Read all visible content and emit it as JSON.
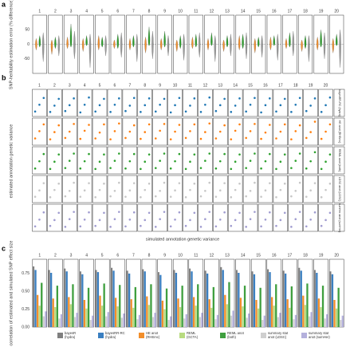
{
  "chart_data": [
    {
      "type": "violin",
      "panel_label": "a",
      "y_label": "SNP-heritability estimation error (% difference)",
      "facets": [
        "1",
        "2",
        "3",
        "4",
        "5",
        "6",
        "7",
        "8",
        "9",
        "10",
        "11",
        "12",
        "13",
        "14",
        "15",
        "16",
        "17",
        "18",
        "19",
        "20"
      ],
      "ylim": [
        -100,
        100
      ],
      "yticks": [
        -50,
        0,
        50
      ],
      "series": [
        {
          "color": "#f28e2b",
          "min": [
            -20,
            -35,
            -15,
            -25,
            -20,
            -15,
            -20,
            -30,
            -20,
            -25,
            -15,
            -20,
            -25,
            -20,
            -30,
            -20,
            -15,
            -25,
            -20,
            -30
          ],
          "max": [
            20,
            15,
            25,
            20,
            30,
            15,
            20,
            25,
            20,
            15,
            25,
            20,
            15,
            30,
            20,
            25,
            20,
            15,
            25,
            20
          ]
        },
        {
          "color": "#2ca02c",
          "min": [
            -10,
            -15,
            -10,
            -5,
            -10,
            -15,
            -10,
            -5,
            -10,
            -15,
            -10,
            -5,
            -10,
            -15,
            -10,
            -5,
            -10,
            -15,
            -10,
            -5
          ],
          "max": [
            30,
            25,
            70,
            30,
            25,
            35,
            30,
            60,
            45,
            30,
            35,
            40,
            30,
            35,
            25,
            30,
            40,
            30,
            50,
            35
          ]
        },
        {
          "color": "#9a9a9a",
          "min": [
            -60,
            -40,
            -50,
            -80,
            -40,
            -45,
            -60,
            -50,
            -40,
            -55,
            -45,
            -60,
            -40,
            -50,
            -45,
            -55,
            -40,
            -60,
            -50,
            -80
          ],
          "max": [
            40,
            30,
            45,
            35,
            30,
            40,
            35,
            45,
            30,
            35,
            40,
            30,
            35,
            40,
            30,
            35,
            45,
            30,
            40,
            50
          ]
        }
      ]
    },
    {
      "type": "scatter",
      "panel_label": "b",
      "y_label": "estimated annotation genetic variance",
      "x_label": "simulated annotation genetic variance",
      "facets": [
        "1",
        "2",
        "3",
        "4",
        "5",
        "6",
        "7",
        "8",
        "9",
        "10",
        "11",
        "12",
        "13",
        "14",
        "15",
        "16",
        "17",
        "18",
        "19",
        "20"
      ],
      "x": [
        0.001,
        0.0025,
        0.004
      ],
      "xlim": [
        0,
        0.005
      ],
      "ylim": [
        0,
        0.006
      ],
      "rows": [
        {
          "name": "bayesRR-RC (hydra)",
          "color": "#1f77b4",
          "values": [
            [
              0.0011,
              0.0026,
              0.0041
            ],
            [
              0.001,
              0.0024,
              0.0039
            ],
            [
              0.0012,
              0.0025,
              0.004
            ],
            [
              0.0009,
              0.0026,
              0.0042
            ],
            [
              0.0011,
              0.0025,
              0.0039
            ],
            [
              0.001,
              0.0026,
              0.004
            ],
            [
              0.0012,
              0.0024,
              0.0041
            ],
            [
              0.001,
              0.0025,
              0.004
            ],
            [
              0.0011,
              0.0026,
              0.0039
            ],
            [
              0.0009,
              0.0025,
              0.0041
            ],
            [
              0.0011,
              0.0024,
              0.004
            ],
            [
              0.001,
              0.0026,
              0.0042
            ],
            [
              0.0012,
              0.0025,
              0.0039
            ],
            [
              0.001,
              0.0024,
              0.004
            ],
            [
              0.0011,
              0.0026,
              0.0041
            ],
            [
              0.0009,
              0.0025,
              0.004
            ],
            [
              0.0011,
              0.0025,
              0.0039
            ],
            [
              0.001,
              0.0026,
              0.0041
            ],
            [
              0.0012,
              0.0024,
              0.004
            ],
            [
              0.001,
              0.0025,
              0.0042
            ]
          ]
        },
        {
          "name": "HE anot (RHEmc)",
          "color": "#ff7f0e",
          "values": [
            [
              0.0015,
              0.0031,
              0.0046
            ],
            [
              0.0013,
              0.0029,
              0.0044
            ],
            [
              0.0016,
              0.003,
              0.0047
            ],
            [
              0.0014,
              0.0032,
              0.0045
            ],
            [
              0.0015,
              0.0028,
              0.0046
            ],
            [
              0.0013,
              0.0031,
              0.0048
            ],
            [
              0.0016,
              0.003,
              0.0044
            ],
            [
              0.0014,
              0.0029,
              0.0046
            ],
            [
              0.0015,
              0.0032,
              0.0047
            ],
            [
              0.0013,
              0.003,
              0.0045
            ],
            [
              0.0016,
              0.0031,
              0.0046
            ],
            [
              0.0014,
              0.0029,
              0.0048
            ],
            [
              0.0015,
              0.003,
              0.0044
            ],
            [
              0.0013,
              0.0032,
              0.0046
            ],
            [
              0.0016,
              0.0031,
              0.0047
            ],
            [
              0.0014,
              0.0028,
              0.0045
            ],
            [
              0.0015,
              0.003,
              0.0046
            ],
            [
              0.0013,
              0.0031,
              0.0044
            ],
            [
              0.0016,
              0.0029,
              0.0052
            ],
            [
              0.0014,
              0.003,
              0.0046
            ]
          ]
        },
        {
          "name": "REML anot (both)",
          "color": "#2ca02c",
          "values": [
            [
              0.0012,
              0.0028,
              0.0044
            ],
            [
              0.0011,
              0.0027,
              0.0043
            ],
            [
              0.0013,
              0.0029,
              0.0045
            ],
            [
              0.0012,
              0.0028,
              0.0044
            ],
            [
              0.0011,
              0.0027,
              0.0043
            ],
            [
              0.0013,
              0.0029,
              0.0045
            ],
            [
              0.0012,
              0.0028,
              0.0044
            ],
            [
              0.0011,
              0.0027,
              0.0043
            ],
            [
              0.0013,
              0.0029,
              0.0045
            ],
            [
              0.0012,
              0.0028,
              0.0044
            ],
            [
              0.0011,
              0.0027,
              0.0043
            ],
            [
              0.0013,
              0.0029,
              0.0045
            ],
            [
              0.0012,
              0.0028,
              0.0044
            ],
            [
              0.0011,
              0.0027,
              0.0043
            ],
            [
              0.0013,
              0.0029,
              0.0045
            ],
            [
              0.0012,
              0.0028,
              0.0044
            ],
            [
              0.0011,
              0.0027,
              0.0043
            ],
            [
              0.0013,
              0.0029,
              0.0045
            ],
            [
              0.0012,
              0.0028,
              0.0048
            ],
            [
              0.0011,
              0.0027,
              0.0043
            ]
          ]
        },
        {
          "name": "LDSC anot (LDSC)",
          "color": "#c7c7c7",
          "values": [
            [
              0.0013,
              0.0027,
              0.0043
            ],
            [
              0.0012,
              0.0028,
              0.0042
            ],
            [
              0.0014,
              0.0026,
              0.0044
            ],
            [
              0.0013,
              0.0027,
              0.0043
            ],
            [
              0.0012,
              0.0028,
              0.0042
            ],
            [
              0.0014,
              0.0026,
              0.0044
            ],
            [
              0.0013,
              0.0027,
              0.0043
            ],
            [
              0.0012,
              0.0028,
              0.0042
            ],
            [
              0.0014,
              0.0026,
              0.0044
            ],
            [
              0.0013,
              0.0027,
              0.0043
            ],
            [
              0.0012,
              0.0028,
              0.0042
            ],
            [
              0.0014,
              0.0026,
              0.0044
            ],
            [
              0.0013,
              0.0027,
              0.0043
            ],
            [
              0.0012,
              0.0028,
              0.0042
            ],
            [
              0.0014,
              0.0026,
              0.0044
            ],
            [
              0.0013,
              0.0027,
              0.0043
            ],
            [
              0.0012,
              0.0028,
              0.0042
            ],
            [
              0.0014,
              0.0026,
              0.0044
            ],
            [
              0.0013,
              0.0027,
              0.0043
            ],
            [
              0.0012,
              0.0028,
              0.0042
            ]
          ]
        },
        {
          "name": "sumHer anot (sumHer)",
          "color": "#a09cd0",
          "values": [
            [
              0.0011,
              0.0026,
              0.0042
            ],
            [
              0.0012,
              0.0025,
              0.0041
            ],
            [
              0.001,
              0.0027,
              0.0043
            ],
            [
              0.0011,
              0.0026,
              0.0042
            ],
            [
              0.0012,
              0.0025,
              0.0041
            ],
            [
              0.001,
              0.0027,
              0.0043
            ],
            [
              0.0011,
              0.0026,
              0.0042
            ],
            [
              0.0012,
              0.0025,
              0.0041
            ],
            [
              0.001,
              0.0027,
              0.0043
            ],
            [
              0.0011,
              0.0026,
              0.0042
            ],
            [
              0.0012,
              0.0025,
              0.0041
            ],
            [
              0.001,
              0.0027,
              0.0043
            ],
            [
              0.0011,
              0.0026,
              0.0042
            ],
            [
              0.0012,
              0.0025,
              0.0041
            ],
            [
              0.001,
              0.0027,
              0.0043
            ],
            [
              0.0011,
              0.0026,
              0.0042
            ],
            [
              0.0012,
              0.0025,
              0.0041
            ],
            [
              0.001,
              0.0027,
              0.0043
            ],
            [
              0.0011,
              0.0026,
              0.0042
            ],
            [
              0.0012,
              0.0025,
              0.0041
            ]
          ]
        }
      ]
    },
    {
      "type": "bar",
      "panel_label": "c",
      "y_label": "correlation of estimated and simulated SNP effect size",
      "facets": [
        "1",
        "2",
        "3",
        "4",
        "5",
        "6",
        "7",
        "8",
        "9",
        "10",
        "11",
        "12",
        "13",
        "14",
        "15",
        "16",
        "17",
        "18",
        "19",
        "20"
      ],
      "ylim": [
        0,
        0.95
      ],
      "yticks": [
        {
          "value": 0,
          "label": "0.00"
        },
        {
          "value": 0.25,
          "label": "0.25"
        },
        {
          "value": 0.5,
          "label": "0.50"
        },
        {
          "value": 0.75,
          "label": "0.75"
        }
      ],
      "series": [
        {
          "name": "bayesR (hydra)",
          "color": "#7f7f7f",
          "values": [
            0.85,
            0.8,
            0.82,
            0.78,
            0.8,
            0.83,
            0.79,
            0.81,
            0.77,
            0.8,
            0.82,
            0.79,
            0.84,
            0.8,
            0.78,
            0.81,
            0.79,
            0.83,
            0.8,
            0.78
          ]
        },
        {
          "name": "bayesRR-RC (hydra)",
          "color": "#3a7fc1",
          "values": [
            0.8,
            0.76,
            0.78,
            0.74,
            0.77,
            0.79,
            0.75,
            0.78,
            0.73,
            0.76,
            0.78,
            0.75,
            0.8,
            0.76,
            0.74,
            0.77,
            0.75,
            0.79,
            0.76,
            0.74
          ]
        },
        {
          "name": "HE anot (RHEmc)",
          "color": "#f28e2b",
          "values": [
            0.45,
            0.4,
            0.42,
            0.38,
            0.44,
            0.41,
            0.39,
            0.43,
            0.37,
            0.4,
            0.42,
            0.39,
            0.45,
            0.41,
            0.38,
            0.42,
            0.39,
            0.44,
            0.4,
            0.38
          ]
        },
        {
          "name": "REML (GCTA)",
          "color": "#b8db80",
          "values": [
            0.3,
            0.28,
            0.32,
            0.26,
            0.3,
            0.29,
            0.27,
            0.31,
            0.25,
            0.28,
            0.3,
            0.27,
            0.32,
            0.29,
            0.26,
            0.3,
            0.27,
            0.31,
            0.28,
            0.26
          ]
        },
        {
          "name": "REML anot (both)",
          "color": "#3f9f3f",
          "values": [
            0.62,
            0.58,
            0.6,
            0.55,
            0.61,
            0.59,
            0.56,
            0.6,
            0.54,
            0.58,
            0.6,
            0.56,
            0.63,
            0.58,
            0.55,
            0.6,
            0.57,
            0.61,
            0.58,
            0.55
          ]
        },
        {
          "name": "summary stat anot (LDSC)",
          "color": "#cfcfcf",
          "values": [
            0.15,
            0.12,
            0.14,
            0.1,
            0.15,
            0.13,
            0.11,
            0.14,
            0.1,
            0.12,
            0.14,
            0.11,
            0.16,
            0.13,
            0.1,
            0.14,
            0.11,
            0.15,
            0.12,
            0.1
          ]
        },
        {
          "name": "summary stat anot (sumHer)",
          "color": "#b4b0dc",
          "values": [
            0.22,
            0.18,
            0.2,
            0.16,
            0.21,
            0.19,
            0.17,
            0.2,
            0.15,
            0.18,
            0.2,
            0.17,
            0.23,
            0.19,
            0.16,
            0.2,
            0.17,
            0.21,
            0.18,
            0.16
          ]
        }
      ]
    }
  ]
}
